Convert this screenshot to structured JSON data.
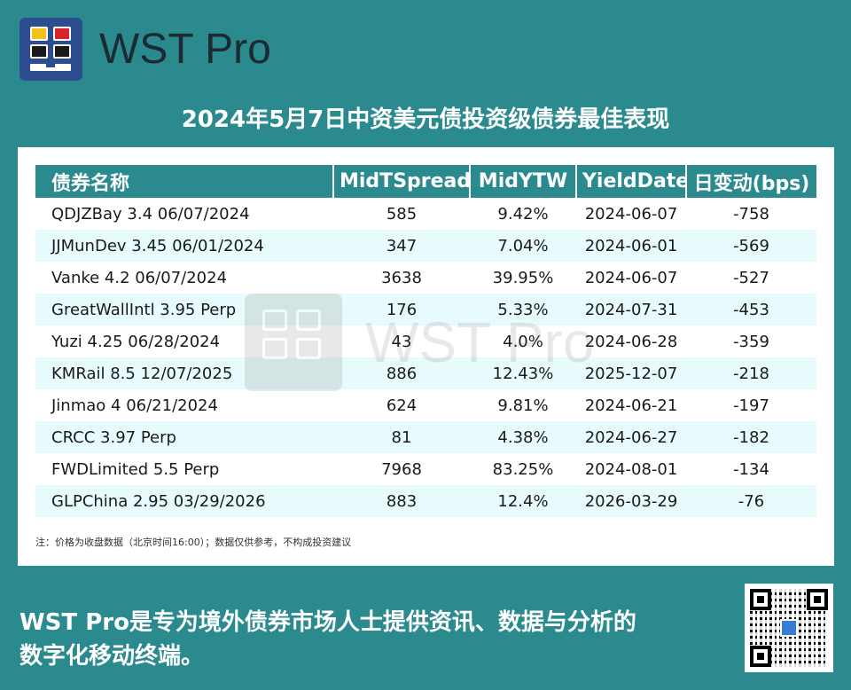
{
  "brand": {
    "name": "WST Pro"
  },
  "headline": "2024年5月7日中资美元债投资级债券最佳表现",
  "table": {
    "headers": [
      "债券名称",
      "MidTSpread",
      "MidYTW",
      "YieldDate",
      "日变动(bps)"
    ],
    "rows": [
      [
        "QDJZBay 3.4 06/07/2024",
        "585",
        "9.42%",
        "2024-06-07",
        "-758"
      ],
      [
        "JJMunDev 3.45 06/01/2024",
        "347",
        "7.04%",
        "2024-06-01",
        "-569"
      ],
      [
        "Vanke 4.2 06/07/2024",
        "3638",
        "39.95%",
        "2024-06-07",
        "-527"
      ],
      [
        "GreatWallIntl 3.95 Perp",
        "176",
        "5.33%",
        "2024-07-31",
        "-453"
      ],
      [
        "Yuzi 4.25 06/28/2024",
        "43",
        "4.0%",
        "2024-06-28",
        "-359"
      ],
      [
        "KMRail 8.5 12/07/2025",
        "886",
        "12.43%",
        "2025-12-07",
        "-218"
      ],
      [
        "Jinmao 4 06/21/2024",
        "624",
        "9.81%",
        "2024-06-21",
        "-197"
      ],
      [
        "CRCC 3.97 Perp",
        "81",
        "4.38%",
        "2024-06-27",
        "-182"
      ],
      [
        "FWDLimited 5.5 Perp",
        "7968",
        "83.25%",
        "2024-08-01",
        "-134"
      ],
      [
        "GLPChina 2.95 03/29/2026",
        "883",
        "12.4%",
        "2026-03-29",
        "-76"
      ]
    ]
  },
  "note": "注：价格为收盘数据（北京时间16:00）；数据仅供参考，不构成投资建议",
  "watermark": "WST Pro",
  "footer": {
    "line1": "WST Pro是专为境外债券市场人士提供资讯、数据与分析的",
    "line2": "数字化移动终端。"
  },
  "colors": {
    "background": "#2b8a8e",
    "header": "#2b8a8e",
    "row_alt": "#e8fbfc",
    "logo_bg": "#2d4e8e"
  },
  "icons": {
    "logo": "wst-pro-logo-icon",
    "qr": "qr-code-icon"
  }
}
